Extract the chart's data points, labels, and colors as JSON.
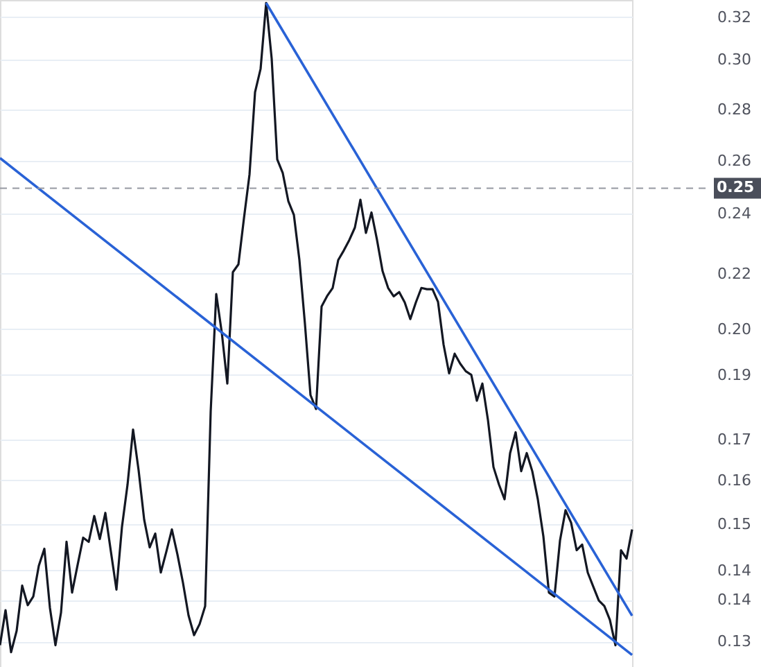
{
  "chart_data": {
    "type": "line",
    "log": "y",
    "grid": "y",
    "marker": "none",
    "line_style": "solid",
    "tick_labels": "y",
    "categories": [
      null,
      null,
      null,
      null,
      null,
      null,
      null,
      null,
      null,
      null,
      null,
      null,
      null,
      null,
      null,
      null,
      null,
      null,
      null,
      null,
      null,
      null,
      null,
      null,
      null,
      null,
      null,
      null,
      null,
      null,
      null,
      null,
      null,
      null,
      null,
      null,
      null,
      null,
      null,
      null,
      null,
      null,
      null,
      null,
      null,
      null,
      null,
      null,
      null,
      null,
      null,
      null,
      null,
      null,
      null,
      null,
      null,
      null,
      null,
      null,
      null,
      null,
      null,
      null,
      null,
      null,
      null,
      null,
      null,
      null,
      null,
      null,
      null,
      null,
      null,
      null,
      null,
      null,
      null,
      null,
      null,
      null,
      null,
      null,
      null,
      null,
      null,
      null,
      null,
      null,
      null,
      null,
      null,
      null,
      null,
      null,
      null,
      null,
      null,
      null,
      null,
      null,
      null,
      null,
      null,
      null,
      null,
      null,
      null,
      null,
      null,
      null,
      null,
      null,
      null
    ],
    "ylim": [
      0.1253,
      0.328
    ],
    "yticks": [
      {
        "value": 0.32,
        "label": "0.32"
      },
      {
        "value": 0.301,
        "label": "0.30"
      },
      {
        "value": 0.28,
        "label": "0.28"
      },
      {
        "value": 0.26,
        "label": "0.26"
      },
      {
        "value": 0.241,
        "label": "0.24"
      },
      {
        "value": 0.221,
        "label": "0.22"
      },
      {
        "value": 0.204,
        "label": "0.20"
      },
      {
        "value": 0.191,
        "label": "0.19"
      },
      {
        "value": 0.174,
        "label": "0.17"
      },
      {
        "value": 0.164,
        "label": "0.16"
      },
      {
        "value": 0.154,
        "label": "0.15"
      },
      {
        "value": 0.144,
        "label": "0.14"
      },
      {
        "value": 0.138,
        "label": "0.14"
      },
      {
        "value": 0.13,
        "label": "0.13"
      }
    ],
    "series": [
      {
        "color": "#131722",
        "values": [
          0.1293,
          0.136,
          0.128,
          0.132,
          0.1409,
          0.137,
          0.1387,
          0.145,
          0.1486,
          0.1365,
          0.1293,
          0.1355,
          0.1501,
          0.1395,
          0.1452,
          0.151,
          0.1501,
          0.1558,
          0.1507,
          0.1565,
          0.148,
          0.1401,
          0.1534,
          0.163,
          0.1765,
          0.1664,
          0.155,
          0.1489,
          0.1519,
          0.1436,
          0.148,
          0.1528,
          0.1474,
          0.1415,
          0.135,
          0.1312,
          0.1333,
          0.1368,
          0.1812,
          0.2146,
          0.203,
          0.1886,
          0.2215,
          0.224,
          0.2394,
          0.255,
          0.2872,
          0.297,
          0.3266,
          0.3014,
          0.2606,
          0.2555,
          0.2454,
          0.2406,
          0.2254,
          0.2055,
          0.1855,
          0.1818,
          0.2108,
          0.214,
          0.2165,
          0.2254,
          0.2285,
          0.232,
          0.2362,
          0.2459,
          0.2344,
          0.2414,
          0.232,
          0.2218,
          0.2165,
          0.2139,
          0.2152,
          0.212,
          0.207,
          0.212,
          0.2165,
          0.2161,
          0.2161,
          0.2122,
          0.1995,
          0.1914,
          0.1969,
          0.1941,
          0.192,
          0.191,
          0.184,
          0.1886,
          0.179,
          0.1672,
          0.163,
          0.1596,
          0.1706,
          0.1758,
          0.1662,
          0.1706,
          0.1662,
          0.1596,
          0.1513,
          0.1395,
          0.1387,
          0.1504,
          0.1571,
          0.1543,
          0.1483,
          0.1495,
          0.1436,
          0.1407,
          0.1379,
          0.1368,
          0.1341,
          0.1293,
          0.1483,
          0.1465,
          0.1528
        ]
      },
      {
        "color": "#2962d6",
        "values": [
          null,
          null,
          null,
          null,
          null,
          null,
          null,
          null,
          null,
          null,
          null,
          null,
          null,
          null,
          null,
          null,
          null,
          null,
          null,
          null,
          null,
          null,
          null,
          null,
          null,
          null,
          null,
          null,
          null,
          null,
          null,
          null,
          null,
          null,
          null,
          null,
          null,
          null,
          null,
          null,
          null,
          null,
          null,
          null,
          null,
          null,
          null,
          null,
          0.3266,
          null,
          null,
          null,
          null,
          null,
          null,
          null,
          null,
          null,
          null,
          null,
          null,
          null,
          null,
          null,
          null,
          null,
          null,
          null,
          null,
          null,
          null,
          null,
          null,
          null,
          null,
          null,
          null,
          null,
          null,
          null,
          null,
          null,
          null,
          null,
          null,
          null,
          null,
          null,
          null,
          null,
          null,
          null,
          null,
          null,
          null,
          null,
          null,
          null,
          null,
          null,
          null,
          null,
          null,
          null,
          null,
          null,
          null,
          null,
          null,
          null,
          null,
          null,
          null,
          null,
          0.1349
        ]
      },
      {
        "color": "#2962d6",
        "values": [
          0.2611,
          null,
          null,
          null,
          null,
          null,
          null,
          null,
          null,
          null,
          null,
          null,
          null,
          null,
          null,
          null,
          null,
          null,
          null,
          null,
          null,
          null,
          null,
          null,
          null,
          null,
          null,
          null,
          null,
          null,
          null,
          null,
          null,
          null,
          null,
          null,
          null,
          null,
          null,
          null,
          null,
          null,
          null,
          null,
          null,
          null,
          null,
          null,
          null,
          null,
          null,
          null,
          null,
          null,
          null,
          null,
          null,
          null,
          null,
          null,
          null,
          null,
          null,
          null,
          null,
          null,
          null,
          null,
          null,
          null,
          null,
          null,
          null,
          null,
          null,
          null,
          null,
          null,
          null,
          null,
          null,
          null,
          null,
          null,
          null,
          null,
          null,
          null,
          null,
          null,
          null,
          null,
          null,
          null,
          null,
          null,
          null,
          null,
          null,
          null,
          null,
          null,
          null,
          null,
          null,
          null,
          null,
          null,
          null,
          null,
          null,
          null,
          null,
          null,
          0.1275
        ]
      }
    ],
    "ref_lines": [
      {
        "axis": "y",
        "value": 0.25,
        "label": "0.25",
        "color": "#9598a1",
        "line_style": "dashed"
      }
    ]
  }
}
